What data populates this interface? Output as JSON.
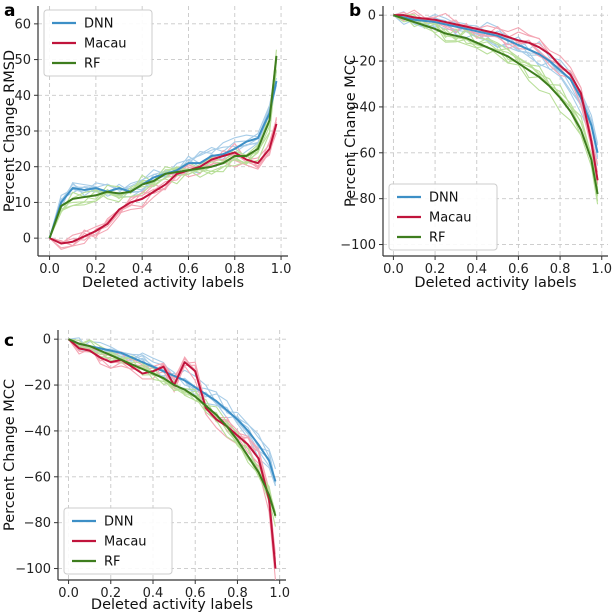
{
  "colors": {
    "DNN": "#3d8fc6",
    "DNN_light": "#a8cde8",
    "Macau": "#c0143c",
    "Macau_light": "#f4a6b4",
    "RF": "#3e7d1e",
    "RF_light": "#b9df9a",
    "grid": "#c8c8c8",
    "axis": "#333333"
  },
  "chart_data": [
    {
      "panel": "a",
      "type": "line",
      "title": "",
      "xlabel": "Deleted activity labels",
      "ylabel": "Percent Change RMSD",
      "xlim": [
        -0.05,
        1.03
      ],
      "ylim": [
        -5,
        65
      ],
      "xticks": [
        0.0,
        0.2,
        0.4,
        0.6,
        0.8,
        1.0
      ],
      "xtick_labels": [
        "0.0",
        "0.2",
        "0.4",
        "0.6",
        "0.8",
        "1.0"
      ],
      "yticks": [
        0,
        10,
        20,
        30,
        40,
        50,
        60
      ],
      "ytick_labels": [
        "0",
        "10",
        "20",
        "30",
        "40",
        "50",
        "60"
      ],
      "grid": true,
      "legend": {
        "placement": "top-left",
        "entries": [
          "DNN",
          "Macau",
          "RF"
        ]
      },
      "series": [
        {
          "name": "DNN",
          "x": [
            0.0,
            0.05,
            0.1,
            0.15,
            0.2,
            0.25,
            0.3,
            0.35,
            0.4,
            0.45,
            0.5,
            0.55,
            0.6,
            0.65,
            0.7,
            0.75,
            0.8,
            0.85,
            0.9,
            0.95,
            0.98
          ],
          "y": [
            0,
            10,
            14,
            13.5,
            14,
            13,
            14,
            13,
            15,
            17,
            18,
            19,
            21,
            21,
            23,
            23.5,
            25,
            27,
            28,
            35,
            44
          ]
        },
        {
          "name": "Macau",
          "x": [
            0.0,
            0.05,
            0.1,
            0.15,
            0.2,
            0.25,
            0.3,
            0.35,
            0.4,
            0.45,
            0.5,
            0.55,
            0.6,
            0.65,
            0.7,
            0.75,
            0.8,
            0.85,
            0.9,
            0.95,
            0.98
          ],
          "y": [
            0,
            -1.5,
            -1,
            0.5,
            2,
            4,
            8,
            10,
            11,
            13,
            15,
            18,
            19,
            20,
            22,
            23,
            24,
            22,
            21,
            25,
            32
          ]
        },
        {
          "name": "RF",
          "x": [
            0.0,
            0.05,
            0.1,
            0.15,
            0.2,
            0.25,
            0.3,
            0.35,
            0.4,
            0.45,
            0.5,
            0.55,
            0.6,
            0.65,
            0.7,
            0.75,
            0.8,
            0.85,
            0.9,
            0.95,
            0.98
          ],
          "y": [
            0,
            9,
            11,
            11.5,
            12,
            13,
            12.5,
            13,
            15,
            16,
            18,
            18.5,
            19,
            19.5,
            20,
            21,
            23,
            23,
            25,
            33,
            51
          ]
        }
      ]
    },
    {
      "panel": "b",
      "type": "line",
      "title": "",
      "xlabel": "Deleted activity labels",
      "ylabel": "Percent Change MCC",
      "xlim": [
        -0.05,
        1.03
      ],
      "ylim": [
        -105,
        4
      ],
      "xticks": [
        0.0,
        0.2,
        0.4,
        0.6,
        0.8,
        1.0
      ],
      "xtick_labels": [
        "0.0",
        "0.2",
        "0.4",
        "0.6",
        "0.8",
        "1.0"
      ],
      "yticks": [
        0,
        -20,
        -40,
        -60,
        -80,
        -100
      ],
      "ytick_labels": [
        "0",
        "−20",
        "−40",
        "−60",
        "−80",
        "−100"
      ],
      "grid": true,
      "legend": {
        "placement": "bottom-left",
        "entries": [
          "DNN",
          "Macau",
          "RF"
        ]
      },
      "series": [
        {
          "name": "DNN",
          "x": [
            0.0,
            0.05,
            0.1,
            0.15,
            0.2,
            0.25,
            0.3,
            0.35,
            0.4,
            0.45,
            0.5,
            0.55,
            0.6,
            0.65,
            0.7,
            0.75,
            0.8,
            0.85,
            0.9,
            0.95,
            0.98
          ],
          "y": [
            0,
            -1,
            -2,
            -2.5,
            -3,
            -4,
            -5,
            -6,
            -7,
            -8,
            -9,
            -11,
            -13,
            -15,
            -17,
            -20,
            -24,
            -28,
            -36,
            -48,
            -60
          ]
        },
        {
          "name": "Macau",
          "x": [
            0.0,
            0.05,
            0.1,
            0.15,
            0.2,
            0.25,
            0.3,
            0.35,
            0.4,
            0.45,
            0.5,
            0.55,
            0.6,
            0.65,
            0.7,
            0.75,
            0.8,
            0.85,
            0.9,
            0.95,
            0.98
          ],
          "y": [
            0,
            0,
            -1,
            -1.5,
            -2,
            -3,
            -4,
            -5,
            -6,
            -7,
            -8,
            -9.5,
            -11,
            -12,
            -14,
            -17,
            -22,
            -26,
            -34,
            -55,
            -72
          ]
        },
        {
          "name": "RF",
          "x": [
            0.0,
            0.05,
            0.1,
            0.15,
            0.2,
            0.25,
            0.3,
            0.35,
            0.4,
            0.45,
            0.5,
            0.55,
            0.6,
            0.65,
            0.7,
            0.75,
            0.8,
            0.85,
            0.9,
            0.95,
            0.98
          ],
          "y": [
            0,
            -1.5,
            -3,
            -4.5,
            -6,
            -8,
            -9,
            -10,
            -12,
            -14,
            -16,
            -18,
            -21,
            -24,
            -27,
            -31,
            -36,
            -42,
            -50,
            -63,
            -78
          ]
        }
      ]
    },
    {
      "panel": "c",
      "type": "line",
      "title": "",
      "xlabel": "Deleted activity labels",
      "ylabel": "Percent Change MCC",
      "xlim": [
        -0.05,
        1.03
      ],
      "ylim": [
        -105,
        4
      ],
      "xticks": [
        0.0,
        0.2,
        0.4,
        0.6,
        0.8,
        1.0
      ],
      "xtick_labels": [
        "0.0",
        "0.2",
        "0.4",
        "0.6",
        "0.8",
        "1.0"
      ],
      "yticks": [
        0,
        -20,
        -40,
        -60,
        -80,
        -100
      ],
      "ytick_labels": [
        "0",
        "−20",
        "−40",
        "−60",
        "−80",
        "−100"
      ],
      "grid": true,
      "legend": {
        "placement": "bottom-left",
        "entries": [
          "DNN",
          "Macau",
          "RF"
        ]
      },
      "series": [
        {
          "name": "DNN",
          "x": [
            0.0,
            0.05,
            0.1,
            0.15,
            0.2,
            0.25,
            0.3,
            0.35,
            0.4,
            0.45,
            0.5,
            0.55,
            0.6,
            0.65,
            0.7,
            0.75,
            0.8,
            0.85,
            0.9,
            0.95,
            0.98
          ],
          "y": [
            0,
            -2,
            -3,
            -4,
            -5,
            -6,
            -8,
            -10,
            -12,
            -14,
            -16,
            -18,
            -21,
            -24,
            -27,
            -31,
            -35,
            -40,
            -46,
            -53,
            -62
          ]
        },
        {
          "name": "Macau",
          "x": [
            0.0,
            0.05,
            0.1,
            0.15,
            0.2,
            0.25,
            0.3,
            0.35,
            0.4,
            0.45,
            0.5,
            0.55,
            0.6,
            0.65,
            0.7,
            0.75,
            0.8,
            0.85,
            0.9,
            0.95,
            0.98
          ],
          "y": [
            0,
            -4,
            -5,
            -8,
            -10,
            -9,
            -12,
            -15,
            -14,
            -12,
            -20,
            -10,
            -14,
            -30,
            -35,
            -38,
            -42,
            -46,
            -52,
            -70,
            -100
          ]
        },
        {
          "name": "RF",
          "x": [
            0.0,
            0.05,
            0.1,
            0.15,
            0.2,
            0.25,
            0.3,
            0.35,
            0.4,
            0.45,
            0.5,
            0.55,
            0.6,
            0.65,
            0.7,
            0.75,
            0.8,
            0.85,
            0.9,
            0.95,
            0.98
          ],
          "y": [
            0,
            -2,
            -3,
            -5,
            -7,
            -9,
            -11,
            -13,
            -15,
            -17,
            -20,
            -22,
            -25,
            -29,
            -33,
            -38,
            -44,
            -51,
            -58,
            -68,
            -77
          ]
        }
      ]
    }
  ]
}
